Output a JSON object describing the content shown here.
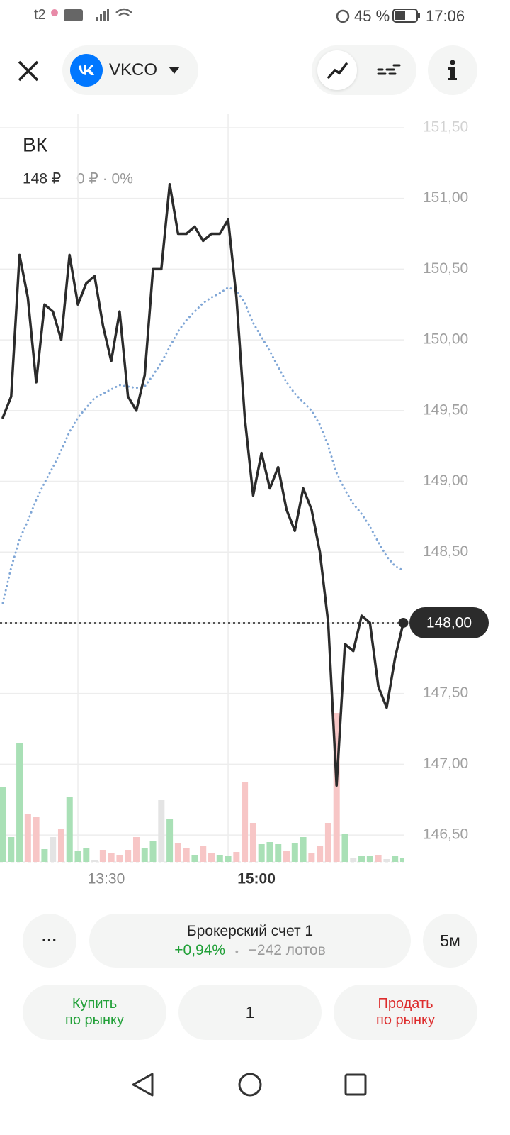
{
  "status_bar": {
    "carrier": "t2",
    "battery": "45 %",
    "time": "17:06"
  },
  "header": {
    "ticker": "VKCO"
  },
  "chart_data": {
    "type": "line",
    "title": "ВК",
    "price": "148 ₽",
    "change": "0 ₽ · 0%",
    "categories": [
      null,
      null,
      null,
      null,
      null,
      null,
      null,
      null,
      null,
      "13:30",
      null,
      null,
      null,
      null,
      null,
      null,
      null,
      null,
      null,
      null,
      null,
      null,
      null,
      null,
      null,
      null,
      null,
      "15:00",
      null,
      null,
      null,
      null,
      null,
      null,
      null,
      null,
      null,
      null,
      null,
      null,
      null,
      null,
      null,
      null,
      null,
      null,
      null,
      null,
      null
    ],
    "series": [
      {
        "color": "#2b2b2b",
        "values": [
          149.45,
          149.6,
          150.6,
          150.3,
          149.7,
          150.25,
          150.2,
          150.0,
          150.6,
          150.25,
          150.4,
          150.45,
          150.1,
          149.85,
          150.2,
          149.6,
          149.5,
          149.75,
          150.5,
          150.5,
          151.1,
          150.75,
          150.75,
          150.8,
          150.7,
          150.75,
          150.75,
          150.85,
          150.3,
          149.45,
          148.9,
          149.2,
          148.95,
          149.1,
          148.8,
          148.65,
          148.95,
          148.8,
          148.5,
          148.0,
          146.85,
          147.85,
          147.8,
          148.05,
          148.0,
          147.55,
          147.4,
          147.75,
          148.0
        ]
      },
      {
        "color": "#7fa6d6",
        "style": "dotted",
        "values": [
          148.14,
          148.39,
          148.59,
          148.72,
          148.87,
          148.99,
          149.1,
          149.22,
          149.35,
          149.45,
          149.52,
          149.59,
          149.62,
          149.65,
          149.68,
          149.67,
          149.66,
          149.67,
          149.75,
          149.84,
          149.95,
          150.06,
          150.14,
          150.2,
          150.26,
          150.3,
          150.33,
          150.37,
          150.35,
          150.26,
          150.12,
          150.02,
          149.92,
          149.81,
          149.7,
          149.62,
          149.56,
          149.5,
          149.4,
          149.25,
          149.06,
          148.94,
          148.84,
          148.77,
          148.68,
          148.57,
          148.47,
          148.4,
          148.37
        ]
      }
    ],
    "volume": {
      "values": [
        105,
        35,
        168,
        68,
        63,
        18,
        35,
        47,
        92,
        15,
        20,
        3,
        17,
        12,
        10,
        17,
        35,
        20,
        30,
        87,
        60,
        27,
        20,
        10,
        22,
        12,
        10,
        8,
        14,
        113,
        55,
        25,
        28,
        25,
        15,
        27,
        35,
        12,
        23,
        55,
        210,
        40,
        5,
        8,
        8,
        10,
        4,
        8,
        6
      ],
      "colors": [
        "#a9e0b6",
        "#a9e0b6",
        "#a9e0b6",
        "#f7c6c6",
        "#f7c6c6",
        "#a9e0b6",
        "#e4e4e4",
        "#f7c6c6",
        "#a9e0b6",
        "#a9e0b6",
        "#a9e0b6",
        "#e4e4e4",
        "#f7c6c6",
        "#f7c6c6",
        "#f7c6c6",
        "#f7c6c6",
        "#f7c6c6",
        "#a9e0b6",
        "#a9e0b6",
        "#e4e4e4",
        "#a9e0b6",
        "#f7c6c6",
        "#f7c6c6",
        "#a9e0b6",
        "#f7c6c6",
        "#f7c6c6",
        "#a9e0b6",
        "#a9e0b6",
        "#f7c6c6",
        "#f7c6c6",
        "#f7c6c6",
        "#a9e0b6",
        "#a9e0b6",
        "#a9e0b6",
        "#f7c6c6",
        "#a9e0b6",
        "#a9e0b6",
        "#f7c6c6",
        "#f7c6c6",
        "#f7c6c6",
        "#f7c6c6",
        "#a9e0b6",
        "#e4e4e4",
        "#a9e0b6",
        "#a9e0b6",
        "#f7c6c6",
        "#e4e4e4",
        "#a9e0b6",
        "#a9e0b6"
      ]
    },
    "ylim": [
      146.31,
      151.6
    ],
    "yticks": [
      {
        "value": 146.5,
        "label": "146,50"
      },
      {
        "value": 147,
        "label": "147,00"
      },
      {
        "value": 147.5,
        "label": "147,50"
      },
      {
        "value": 148,
        "label": "148,00"
      },
      {
        "value": 148.5,
        "label": "148,50"
      },
      {
        "value": 149,
        "label": "149,00"
      },
      {
        "value": 149.5,
        "label": "149,50"
      },
      {
        "value": 150,
        "label": "150,00"
      },
      {
        "value": 150.5,
        "label": "150,50"
      },
      {
        "value": 151,
        "label": "151,00"
      },
      {
        "value": 151.5,
        "label": "151,50"
      }
    ],
    "last_price": {
      "value": 148,
      "label": "148,00"
    },
    "grid": true
  },
  "account": {
    "more": "···",
    "name": "Брокерский счет 1",
    "change": "+0,94%",
    "separator": "•",
    "lots": "−242 лотов"
  },
  "interval": "5м",
  "buy": {
    "line1": "Купить",
    "line2": "по рынку"
  },
  "quantity": "1",
  "sell": {
    "line1": "Продать",
    "line2": "по рынку"
  }
}
